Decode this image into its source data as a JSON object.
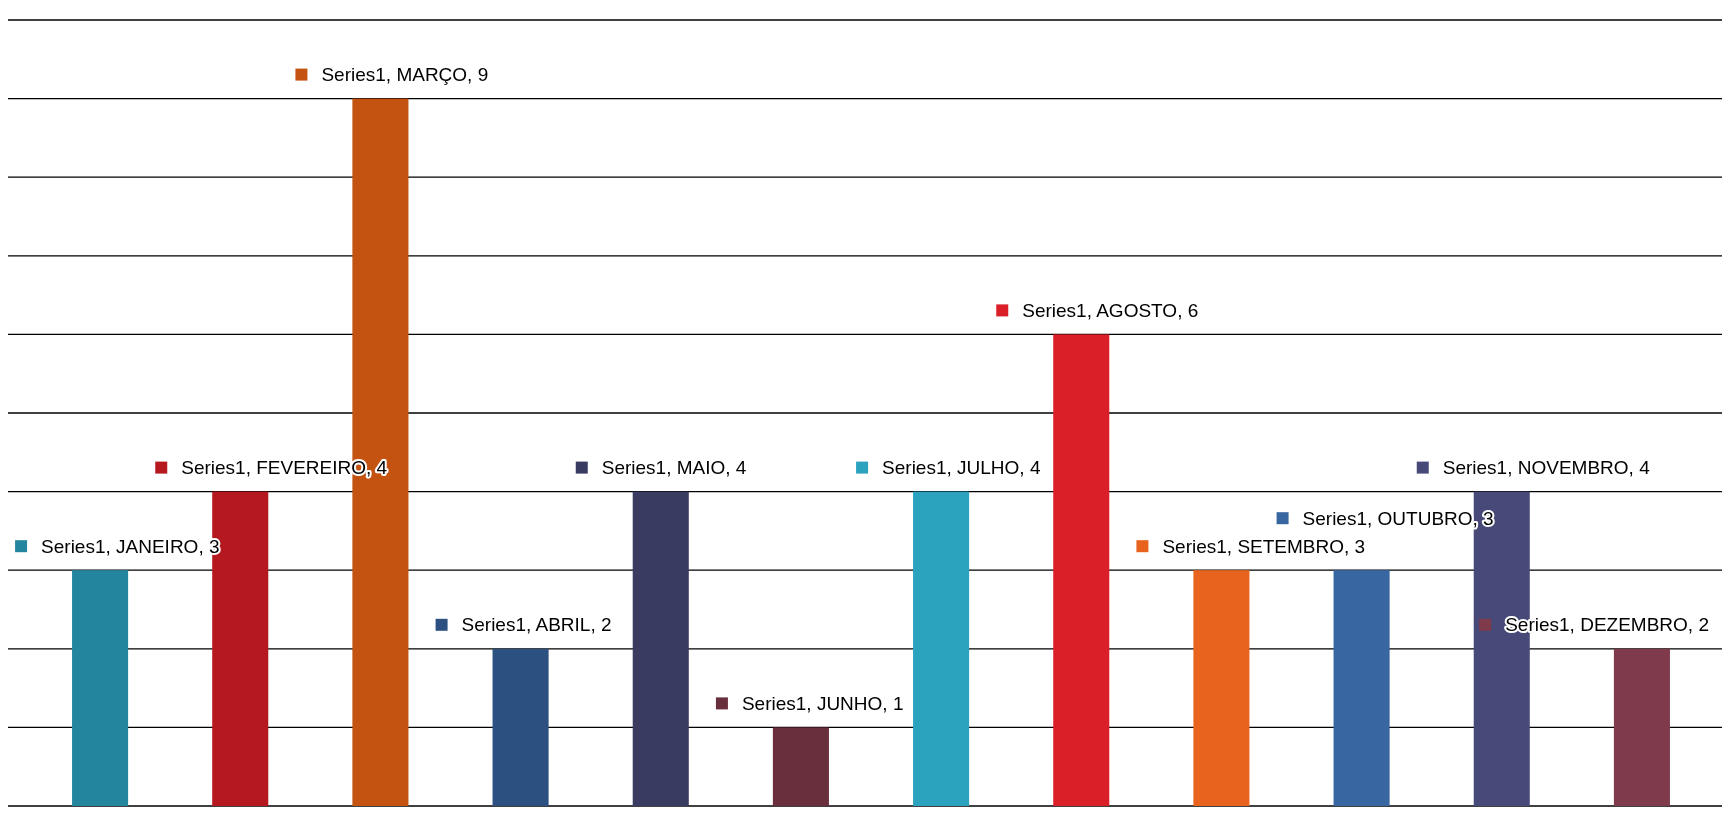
{
  "chart_data": {
    "type": "bar",
    "categories": [
      null,
      null,
      null,
      null,
      null,
      null,
      null,
      null,
      null,
      null,
      null,
      null
    ],
    "values": [
      3,
      4,
      9,
      2,
      4,
      1,
      4,
      6,
      3,
      3,
      4,
      2
    ],
    "colors": [
      "#23869e",
      "#b5191f",
      "#c45312",
      "#2c5181",
      "#393b61",
      "#692f3c",
      "#2ba3bf",
      "#da1f28",
      "#e8641e",
      "#3866a0",
      "#474a78",
      "#7f3b4c"
    ],
    "value_labels": [
      "Series1, JANEIRO, 3",
      "Series1, FEVEREIRO, 4",
      "Series1, MARÇO, 9",
      "Series1, ABRIL, 2",
      "Series1, MAIO, 4",
      "Series1, JUNHO, 1",
      "Series1, JULHO, 4",
      "Series1, AGOSTO, 6",
      "Series1, SETEMBRO, 3",
      "Series1, OUTUBRO, 3",
      "Series1, NOVEMBRO, 4",
      "Series1, DEZEMBRO, 2"
    ],
    "ylim": [
      0,
      10
    ],
    "yticks": [
      {
        "value": 0,
        "label": null
      },
      {
        "value": 1,
        "label": null
      },
      {
        "value": 2,
        "label": null
      },
      {
        "value": 3,
        "label": null
      },
      {
        "value": 4,
        "label": null
      },
      {
        "value": 5,
        "label": null
      },
      {
        "value": 6,
        "label": null
      },
      {
        "value": 7,
        "label": null
      },
      {
        "value": 8,
        "label": null
      },
      {
        "value": 9,
        "label": null
      },
      {
        "value": 10,
        "label": null
      }
    ],
    "grid": true
  }
}
